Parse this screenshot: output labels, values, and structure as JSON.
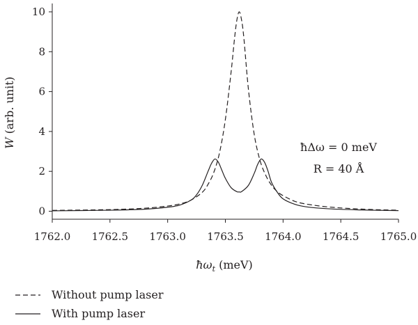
{
  "chart_data": {
    "type": "line",
    "xlabel_symbol": "ħω",
    "xlabel_sub": "t",
    "xlabel_unit": " (meV)",
    "ylabel_symbol": "W",
    "ylabel_unit": " (arb. unit)",
    "xlim": [
      1762.0,
      1765.0
    ],
    "ylim": [
      0,
      10.4
    ],
    "x_ticks": [
      1762.0,
      1762.5,
      1763.0,
      1763.5,
      1764.0,
      1764.5,
      1765.0
    ],
    "x_tick_labels": [
      "1762.0",
      "1762.5",
      "1763.0",
      "1763.5",
      "1764.0",
      "1764.5",
      "1765.0"
    ],
    "y_ticks": [
      0,
      2,
      4,
      6,
      8,
      10
    ],
    "y_tick_labels": [
      "0",
      "2",
      "4",
      "6",
      "8",
      "10"
    ],
    "grid": false,
    "legend_position": "bottom-left, below plot",
    "annotations": [
      "ħΔω = 0 meV",
      "R = 40 Å"
    ],
    "series": [
      {
        "name": "Without pump laser",
        "style": "dashed",
        "color": "#231f20",
        "x": [
          1762.0,
          1762.5,
          1762.8,
          1763.0,
          1763.1,
          1763.2,
          1763.3,
          1763.35,
          1763.4,
          1763.45,
          1763.5,
          1763.55,
          1763.58,
          1763.6,
          1763.62,
          1763.64,
          1763.66,
          1763.7,
          1763.75,
          1763.8,
          1763.85,
          1763.9,
          1763.95,
          1764.0,
          1764.1,
          1764.2,
          1764.4,
          1764.7,
          1765.0
        ],
        "y": [
          0.04,
          0.08,
          0.15,
          0.26,
          0.36,
          0.55,
          0.95,
          1.35,
          1.95,
          2.95,
          4.6,
          7.0,
          8.7,
          9.6,
          10.0,
          9.6,
          8.7,
          6.1,
          3.85,
          2.55,
          1.8,
          1.3,
          0.98,
          0.78,
          0.5,
          0.36,
          0.21,
          0.1,
          0.05
        ]
      },
      {
        "name": "With pump laser",
        "style": "solid",
        "color": "#231f20",
        "x": [
          1762.0,
          1762.5,
          1762.8,
          1763.0,
          1763.1,
          1763.2,
          1763.25,
          1763.3,
          1763.35,
          1763.38,
          1763.41,
          1763.44,
          1763.47,
          1763.5,
          1763.55,
          1763.6,
          1763.62,
          1763.64,
          1763.7,
          1763.75,
          1763.78,
          1763.81,
          1763.84,
          1763.87,
          1763.9,
          1763.95,
          1764.0,
          1764.1,
          1764.2,
          1764.4,
          1764.7,
          1765.0
        ],
        "y": [
          0.02,
          0.05,
          0.1,
          0.2,
          0.3,
          0.55,
          0.82,
          1.3,
          2.0,
          2.4,
          2.62,
          2.45,
          2.05,
          1.65,
          1.18,
          0.98,
          0.97,
          0.98,
          1.3,
          1.9,
          2.35,
          2.62,
          2.45,
          2.0,
          1.45,
          0.95,
          0.62,
          0.35,
          0.22,
          0.12,
          0.06,
          0.03
        ]
      }
    ]
  }
}
